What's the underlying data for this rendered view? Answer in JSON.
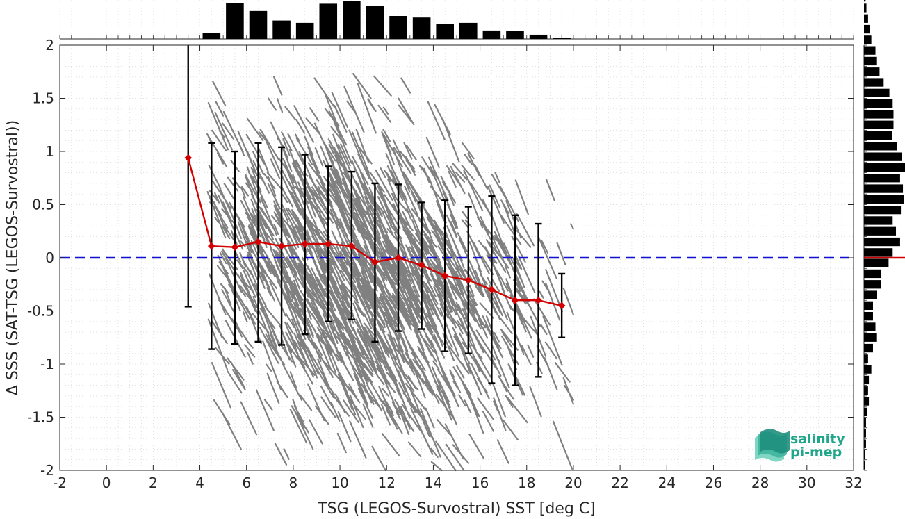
{
  "chart_data": {
    "type": "scatter",
    "title": "",
    "xlabel": "TSG (LEGOS-Survostral) SST [deg C]",
    "ylabel": "Δ SSS (SAT-TSG (LEGOS-Survostral))",
    "xlim": [
      -2,
      32
    ],
    "ylim": [
      -2,
      2
    ],
    "xticks": [
      -2,
      0,
      2,
      4,
      6,
      8,
      10,
      12,
      14,
      16,
      18,
      20,
      22,
      24,
      26,
      28,
      30,
      32
    ],
    "yticks": [
      -2,
      -1.5,
      -1,
      -0.5,
      0,
      0.5,
      1,
      1.5,
      2
    ],
    "xtick_labels": [
      "-2",
      "0",
      "2",
      "4",
      "6",
      "8",
      "10",
      "12",
      "14",
      "16",
      "18",
      "20",
      "22",
      "24",
      "26",
      "28",
      "30",
      "32"
    ],
    "ytick_labels": [
      "-2",
      "-1.5",
      "-1",
      "-0.5",
      "0",
      "0.5",
      "1",
      "1.5",
      "2"
    ],
    "grid": true,
    "zero_line": {
      "y": 0,
      "style": "dashed",
      "color": "#1010d0"
    },
    "binned_mean": {
      "color": "#d40000",
      "x": [
        3.5,
        4.5,
        5.5,
        6.5,
        7.5,
        8.5,
        9.5,
        10.5,
        11.5,
        12.5,
        13.5,
        14.5,
        15.5,
        16.5,
        17.5,
        18.5,
        19.5
      ],
      "mean": [
        0.94,
        0.11,
        0.1,
        0.15,
        0.11,
        0.13,
        0.13,
        0.11,
        -0.04,
        0.0,
        -0.07,
        -0.17,
        -0.21,
        -0.3,
        -0.4,
        -0.4,
        -0.45
      ],
      "upper": [
        2.0,
        1.08,
        1.0,
        1.08,
        1.04,
        0.97,
        0.86,
        0.81,
        0.7,
        0.69,
        0.52,
        0.54,
        0.48,
        0.58,
        0.4,
        0.32,
        -0.15
      ],
      "lower": [
        -0.46,
        -0.86,
        -0.81,
        -0.79,
        -0.82,
        -0.72,
        -0.6,
        -0.58,
        -0.79,
        -0.69,
        -0.67,
        -0.88,
        -0.9,
        -1.18,
        -1.2,
        -1.12,
        -0.75
      ]
    },
    "scatter_cloud": {
      "color": "#808080",
      "x_range": [
        4.3,
        20.0
      ],
      "y_range": [
        -2,
        1.8
      ],
      "trend_slope_per_degC": -0.05
    },
    "top_histogram": {
      "bin_centers": [
        4.5,
        5.5,
        6.5,
        7.5,
        8.5,
        9.5,
        10.5,
        11.5,
        12.5,
        13.5,
        14.5,
        15.5,
        16.5,
        17.5,
        18.5,
        19.5
      ],
      "relative_counts": [
        0.15,
        0.93,
        0.73,
        0.48,
        0.42,
        0.92,
        1.0,
        0.86,
        0.6,
        0.56,
        0.4,
        0.42,
        0.22,
        0.21,
        0.11,
        0.02
      ]
    },
    "right_histogram": {
      "bin_edges_start": -2,
      "bin_width": 0.1,
      "relative_counts": [
        0.02,
        0.03,
        0.05,
        0.05,
        0.05,
        0.08,
        0.12,
        0.1,
        0.12,
        0.18,
        0.1,
        0.22,
        0.3,
        0.28,
        0.22,
        0.22,
        0.32,
        0.42,
        0.42,
        0.6,
        0.7,
        0.88,
        0.78,
        0.7,
        0.9,
        0.98,
        0.95,
        0.88,
        1.0,
        0.92,
        0.8,
        0.68,
        0.72,
        0.72,
        0.7,
        0.62,
        0.48,
        0.38,
        0.3,
        0.28,
        0.18,
        0.15,
        0.1,
        0.06,
        0.04,
        0.04,
        0.03,
        0.04,
        0.03,
        0.03
      ],
      "median_line": {
        "y": 0,
        "color": "#d40000"
      }
    },
    "logo": {
      "line1": "salinity",
      "line2": "pi-mep"
    }
  }
}
